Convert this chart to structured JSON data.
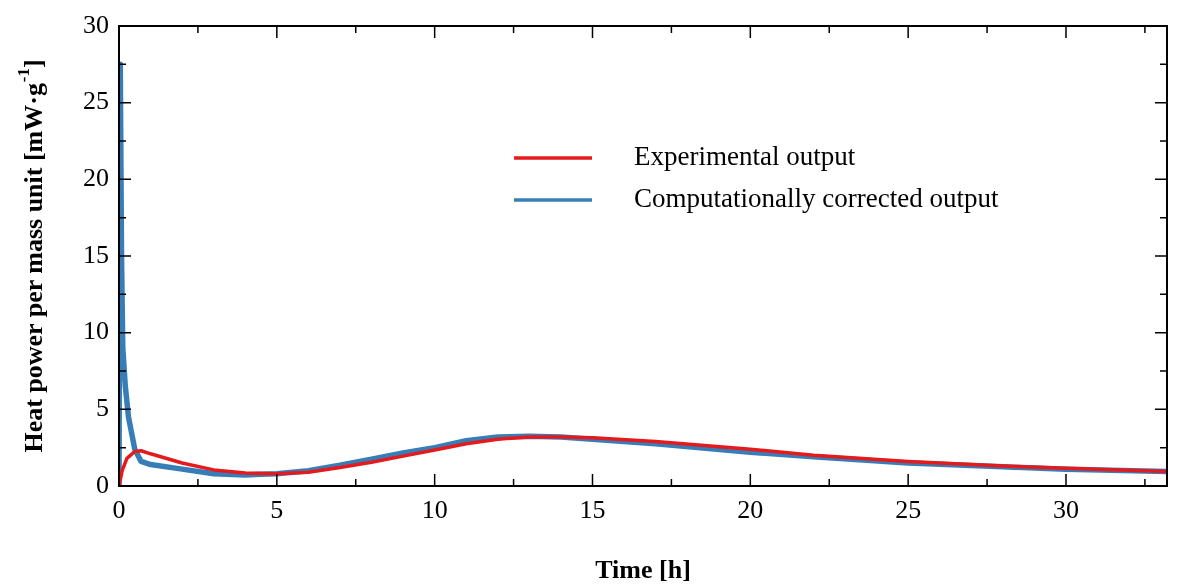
{
  "chart_data": {
    "type": "line",
    "xlabel": "Time [h]",
    "ylabel": "Heat power per mass unit [mW·g$^{-1}$]",
    "xlim": [
      0,
      33.2
    ],
    "xticks": [
      0,
      {
        "value": 2.5,
        "label": null
      },
      5,
      {
        "value": 7.5,
        "label": null
      },
      10,
      {
        "value": 12.5,
        "label": null
      },
      15,
      {
        "value": 17.5,
        "label": null
      },
      20,
      {
        "value": 22.5,
        "label": null
      },
      25,
      {
        "value": 27.5,
        "label": null
      },
      30,
      {
        "value": 32.5,
        "label": null
      }
    ],
    "ylim": [
      0,
      30
    ],
    "yticks": [
      0,
      {
        "value": 2.5,
        "label": null
      },
      5,
      {
        "value": 7.5,
        "label": null
      },
      10,
      {
        "value": 12.5,
        "label": null
      },
      15,
      {
        "value": 17.5,
        "label": null
      },
      20,
      {
        "value": 22.5,
        "label": null
      },
      25,
      {
        "value": 27.5,
        "label": null
      },
      30
    ],
    "grid": false,
    "legend": "top right",
    "marker": "none",
    "line_style": "solid",
    "series": [
      {
        "name": "Experimental output",
        "color": "#e41a1c",
        "x": [
          0,
          0.1,
          0.25,
          0.5,
          0.7,
          1,
          2,
          3,
          4,
          5,
          6,
          7,
          8,
          9,
          10,
          11,
          12,
          13,
          14,
          15,
          17,
          20,
          22,
          25,
          28,
          30,
          33.2
        ],
        "values": [
          0,
          1,
          1.8,
          2.25,
          2.3,
          2.1,
          1.5,
          1.05,
          0.85,
          0.8,
          0.9,
          1.2,
          1.55,
          1.95,
          2.35,
          2.75,
          3.05,
          3.2,
          3.2,
          3.15,
          2.9,
          2.4,
          2.0,
          1.6,
          1.3,
          1.15,
          0.95
        ]
      },
      {
        "name": "Computationally corrected output",
        "color": "#377eb8",
        "x": [
          0,
          0.04,
          0.08,
          0.12,
          0.2,
          0.3,
          0.5,
          0.7,
          1,
          2,
          3,
          4,
          5,
          6,
          7,
          8,
          9,
          10,
          11,
          12,
          13,
          14,
          15,
          17,
          20,
          22,
          25,
          28,
          30,
          33.2
        ],
        "values": [
          0,
          27.5,
          15,
          9,
          6.5,
          4.5,
          2.4,
          1.6,
          1.4,
          1.1,
          0.8,
          0.72,
          0.8,
          1.0,
          1.35,
          1.75,
          2.15,
          2.5,
          2.95,
          3.2,
          3.25,
          3.2,
          3.05,
          2.75,
          2.2,
          1.9,
          1.5,
          1.25,
          1.1,
          0.95
        ]
      }
    ]
  }
}
